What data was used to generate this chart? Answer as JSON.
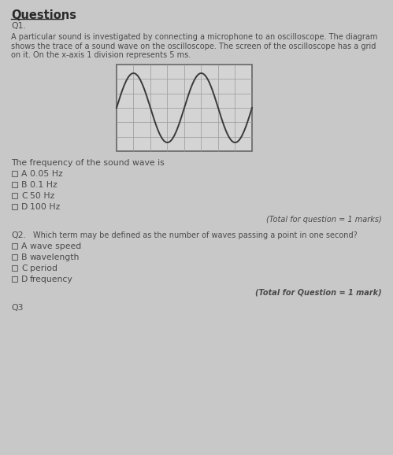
{
  "bg_color": "#c8c8c8",
  "title": "Questions",
  "q1_label": "Q1.",
  "q1_line1": "A particular sound is investigated by connecting a microphone to an oscilloscope. The diagram",
  "q1_line2": "shows the trace of a sound wave on the oscilloscope. The screen of the oscilloscope has a grid",
  "q1_line3": "on it. On the x-axis 1 division represents 5 ms.",
  "q1_stem": "The frequency of the sound wave is",
  "q1_options": [
    [
      "A",
      "0.05 Hz"
    ],
    [
      "B",
      "0.1 Hz"
    ],
    [
      "C",
      "50 Hz"
    ],
    [
      "D",
      "100 Hz"
    ]
  ],
  "q1_total": "(Total for question = 1 marks)",
  "q2_label": "Q2.",
  "q2_text": "Which term may be defined as the number of waves passing a point in one second?",
  "q2_options": [
    [
      "A",
      "wave speed"
    ],
    [
      "B",
      "wavelength"
    ],
    [
      "C",
      "period"
    ],
    [
      "D",
      "frequency"
    ]
  ],
  "q2_total": "(Total for Question = 1 mark)",
  "q3_label": "Q3",
  "text_color": "#4a4a4a",
  "title_color": "#2a2a2a",
  "grid_color": "#999999",
  "wave_color": "#3a3a3a",
  "osc_bg": "#d4d4d4",
  "osc_border": "#666666"
}
